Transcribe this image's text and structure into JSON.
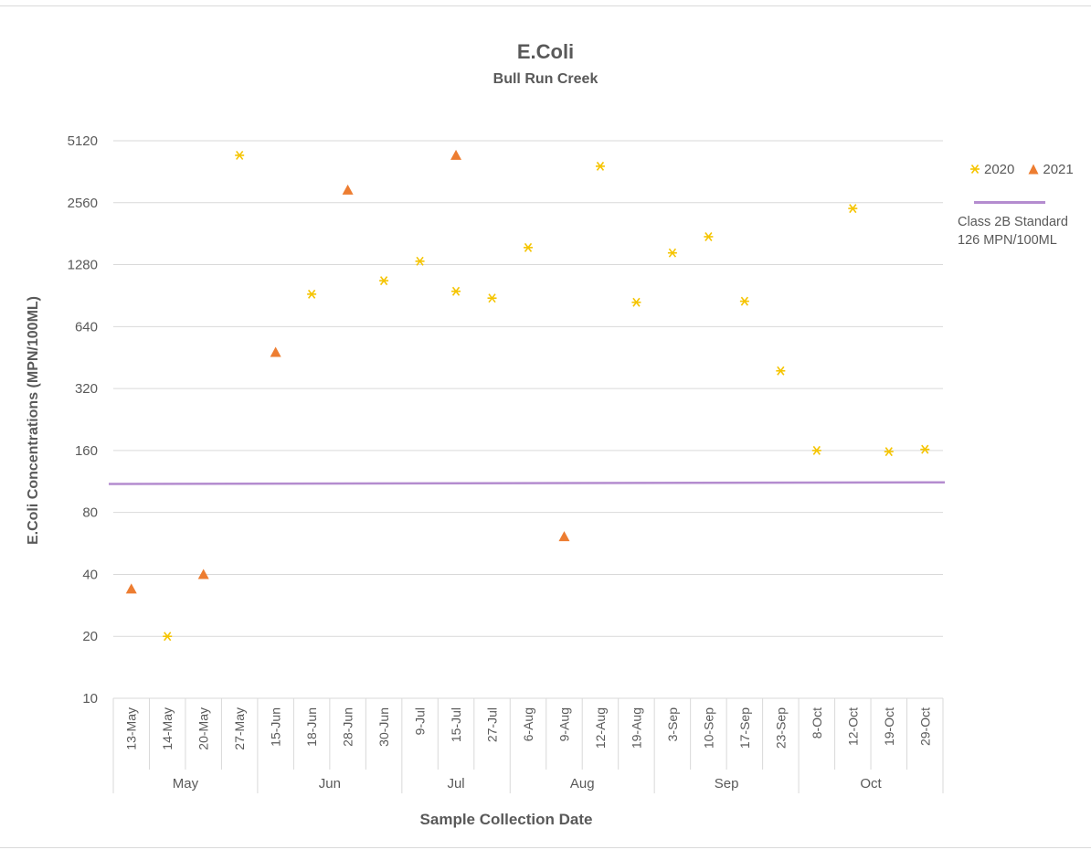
{
  "colors": {
    "series_2020": "#f5c400",
    "series_2021": "#ed7d31",
    "standard_line": "#b48ccf",
    "grid": "#d9d9d9",
    "text": "#595959"
  },
  "chart_data": {
    "type": "scatter",
    "title": "E.Coli",
    "subtitle": "Bull Run Creek",
    "xlabel": "Sample Collection Date",
    "ylabel": "E.Coli Concentrations (MPN/100ML)",
    "y_scale": "log2",
    "ylim": [
      10,
      5120
    ],
    "y_ticks": [
      "5120",
      "2560",
      "1280",
      "640",
      "320",
      "160",
      "80",
      "40",
      "20",
      "10"
    ],
    "grid": true,
    "legend_position": "right",
    "categories": [
      "13-May",
      "14-May",
      "20-May",
      "27-May",
      "15-Jun",
      "18-Jun",
      "28-Jun",
      "30-Jun",
      "9-Jul",
      "15-Jul",
      "27-Jul",
      "6-Aug",
      "9-Aug",
      "12-Aug",
      "19-Aug",
      "3-Sep",
      "10-Sep",
      "17-Sep",
      "23-Sep",
      "8-Oct",
      "12-Oct",
      "19-Oct",
      "29-Oct"
    ],
    "month_groups": [
      {
        "label": "May",
        "start": 0,
        "end": 3
      },
      {
        "label": "Jun",
        "start": 4,
        "end": 7
      },
      {
        "label": "Jul",
        "start": 8,
        "end": 10
      },
      {
        "label": "Aug",
        "start": 11,
        "end": 14
      },
      {
        "label": "Sep",
        "start": 15,
        "end": 18
      },
      {
        "label": "Oct",
        "start": 19,
        "end": 22
      }
    ],
    "series": [
      {
        "name": "2020",
        "marker": "asterisk",
        "points": [
          {
            "x": "14-May",
            "y": 20
          },
          {
            "x": "27-May",
            "y": 4350
          },
          {
            "x": "18-Jun",
            "y": 920
          },
          {
            "x": "30-Jun",
            "y": 1070
          },
          {
            "x": "9-Jul",
            "y": 1330
          },
          {
            "x": "15-Jul",
            "y": 950
          },
          {
            "x": "27-Jul",
            "y": 880
          },
          {
            "x": "6-Aug",
            "y": 1550
          },
          {
            "x": "12-Aug",
            "y": 3850
          },
          {
            "x": "19-Aug",
            "y": 840
          },
          {
            "x": "3-Sep",
            "y": 1460
          },
          {
            "x": "10-Sep",
            "y": 1750
          },
          {
            "x": "17-Sep",
            "y": 850
          },
          {
            "x": "23-Sep",
            "y": 390
          },
          {
            "x": "8-Oct",
            "y": 160
          },
          {
            "x": "12-Oct",
            "y": 2400
          },
          {
            "x": "19-Oct",
            "y": 158
          },
          {
            "x": "29-Oct",
            "y": 162
          }
        ]
      },
      {
        "name": "2021",
        "marker": "triangle",
        "points": [
          {
            "x": "13-May",
            "y": 34
          },
          {
            "x": "20-May",
            "y": 40
          },
          {
            "x": "15-Jun",
            "y": 480
          },
          {
            "x": "28-Jun",
            "y": 2950
          },
          {
            "x": "15-Jul",
            "y": 4350
          },
          {
            "x": "9-Aug",
            "y": 61
          }
        ]
      }
    ],
    "reference_line": {
      "label_line1": "Class 2B Standard",
      "label_line2": "126 MPN/100ML",
      "y_start": 110,
      "y_end": 112
    }
  }
}
